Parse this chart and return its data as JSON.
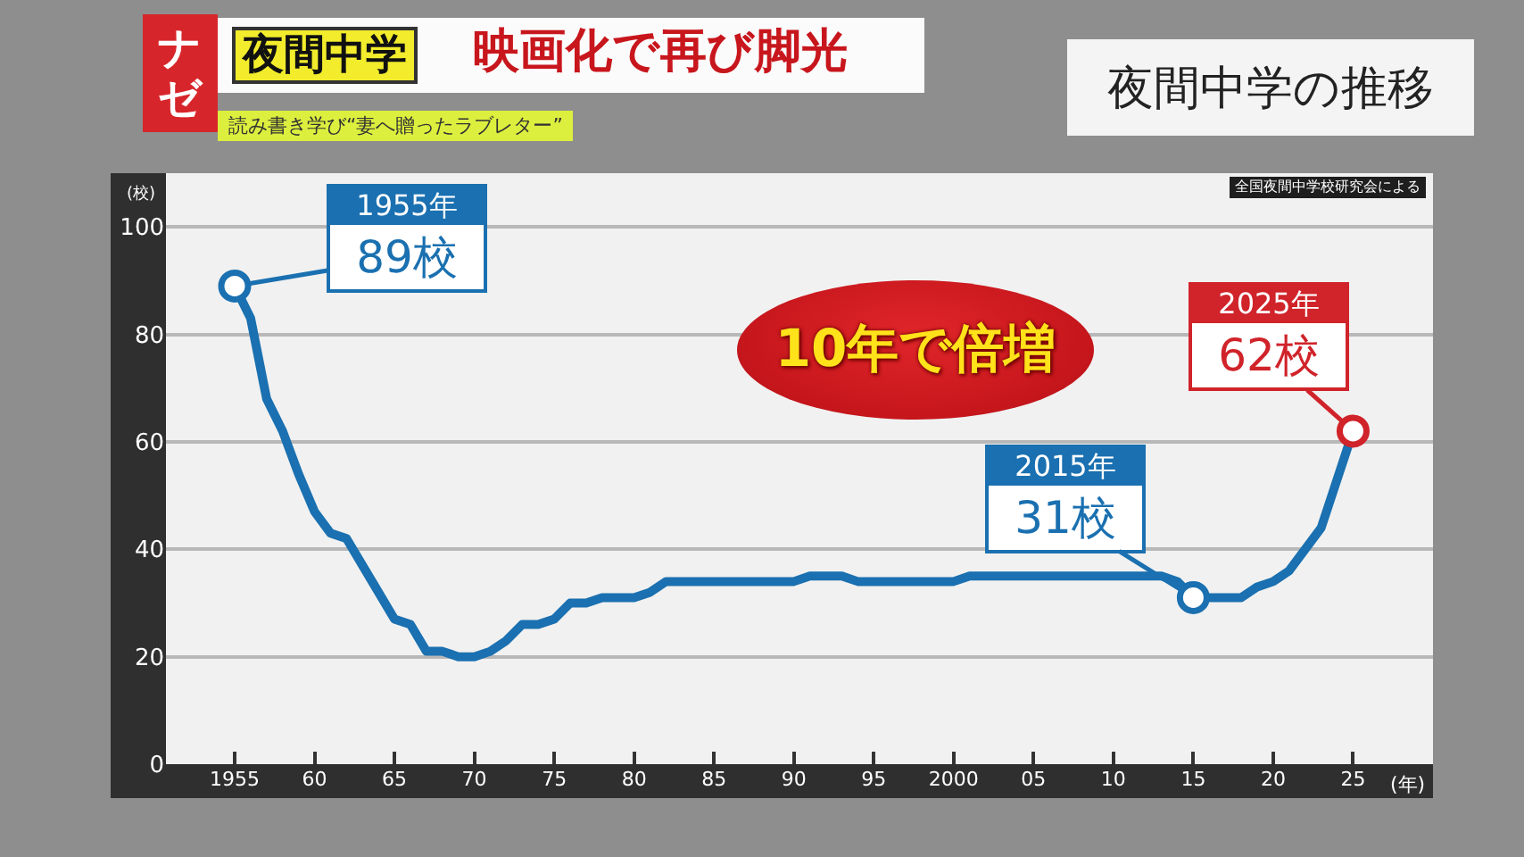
{
  "chart_data": {
    "type": "line",
    "title": "夜間中学の推移",
    "xlabel": "(年)",
    "ylabel": "(校)",
    "x": [
      1955,
      1956,
      1957,
      1958,
      1959,
      1960,
      1961,
      1962,
      1963,
      1964,
      1965,
      1966,
      1967,
      1968,
      1969,
      1970,
      1971,
      1972,
      1973,
      1974,
      1975,
      1976,
      1977,
      1978,
      1979,
      1980,
      1981,
      1982,
      1983,
      1984,
      1985,
      1986,
      1987,
      1988,
      1989,
      1990,
      1991,
      1992,
      1993,
      1994,
      1995,
      1996,
      1997,
      1998,
      1999,
      2000,
      2001,
      2002,
      2003,
      2004,
      2005,
      2006,
      2007,
      2008,
      2009,
      2010,
      2011,
      2012,
      2013,
      2014,
      2015,
      2016,
      2017,
      2018,
      2019,
      2020,
      2021,
      2022,
      2023,
      2024,
      2025
    ],
    "series": [
      {
        "color": "#1a70b0",
        "values": [
          89,
          83,
          68,
          62,
          54,
          47,
          43,
          42,
          37,
          32,
          27,
          26,
          21,
          21,
          20,
          20,
          21,
          23,
          26,
          26,
          27,
          30,
          30,
          31,
          31,
          31,
          32,
          34,
          34,
          34,
          34,
          34,
          34,
          34,
          34,
          34,
          35,
          35,
          35,
          34,
          34,
          34,
          34,
          34,
          34,
          34,
          35,
          35,
          35,
          35,
          35,
          35,
          35,
          35,
          35,
          35,
          35,
          35,
          35,
          34,
          31,
          31,
          31,
          31,
          33,
          34,
          36,
          40,
          44,
          53,
          62
        ]
      },
      {
        "type": "scatter",
        "marker": "circle",
        "x": [
          1955,
          2015,
          2025
        ],
        "values": [
          89,
          31,
          62
        ],
        "colors": [
          "#1a70b0",
          "#1a70b0",
          "#d0232a"
        ]
      }
    ],
    "xlim": [
      1950.7,
      2030
    ],
    "xticks": [
      1955,
      {
        "value": 1960,
        "label": "60"
      },
      {
        "value": 1965,
        "label": "65"
      },
      {
        "value": 1970,
        "label": "70"
      },
      {
        "value": 1975,
        "label": "75"
      },
      {
        "value": 1980,
        "label": "80"
      },
      {
        "value": 1985,
        "label": "85"
      },
      {
        "value": 1990,
        "label": "90"
      },
      {
        "value": 1995,
        "label": "95"
      },
      2000,
      {
        "value": 2005,
        "label": "05"
      },
      {
        "value": 2010,
        "label": "10"
      },
      {
        "value": 2015,
        "label": "15"
      },
      {
        "value": 2020,
        "label": "20"
      },
      {
        "value": 2025,
        "label": "25"
      }
    ],
    "ylim": [
      0,
      110
    ],
    "yticks": [
      0,
      20,
      40,
      60,
      80,
      100
    ],
    "grid": "y",
    "annotations": [
      "ナゼ",
      "夜間中学",
      "映画化で再び脚光",
      "読み書き学び“妻へ贈ったラブレター”",
      "全国夜間中学校研究会による",
      "10年で倍増",
      {
        "text": "1955年\n89校",
        "x": 1955,
        "y": 89
      },
      {
        "text": "2015年\n31校",
        "x": 2015,
        "y": 31
      },
      {
        "text": "2025年\n62校",
        "x": 2025,
        "y": 62
      }
    ]
  }
}
